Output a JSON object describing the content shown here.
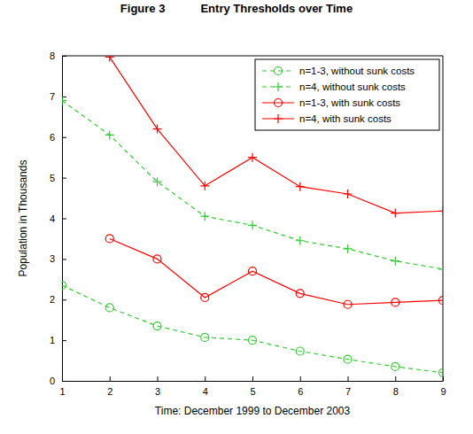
{
  "chart_data": {
    "type": "line",
    "title": "Figure 3",
    "subtitle": "Entry Thresholds over Time",
    "x_label": "Time: December 1999 to December 2003",
    "y_label": "Population in Thousands",
    "x": [
      1,
      2,
      3,
      4,
      5,
      6,
      7,
      8,
      9
    ],
    "xlim": [
      1,
      9
    ],
    "xticks": [
      1,
      2,
      3,
      4,
      5,
      6,
      7,
      8,
      9
    ],
    "ylim": [
      0,
      8
    ],
    "yticks": [
      0,
      1,
      2,
      3,
      4,
      5,
      6,
      7,
      8
    ],
    "grid": false,
    "legend": "upper right",
    "series": [
      {
        "name": "n=1-3, without sunk costs",
        "color": "#33cc33",
        "marker": "circle",
        "line_style": "dashed",
        "values": [
          2.35,
          1.8,
          1.35,
          1.07,
          1.0,
          0.73,
          0.53,
          0.35,
          0.2
        ]
      },
      {
        "name": "n=4, without sunk costs",
        "color": "#33cc33",
        "marker": "plus",
        "line_style": "dashed",
        "values": [
          6.9,
          6.05,
          4.9,
          4.05,
          3.83,
          3.45,
          3.25,
          2.95,
          2.75
        ]
      },
      {
        "name": "n=1-3, with sunk costs",
        "color": "#ff0000",
        "marker": "circle",
        "line_style": "solid",
        "values": [
          null,
          3.5,
          3.0,
          2.05,
          2.7,
          2.15,
          1.88,
          1.93,
          1.98
        ]
      },
      {
        "name": "n=4, with sunk costs",
        "color": "#ff0000",
        "marker": "plus",
        "line_style": "solid",
        "values": [
          null,
          7.97,
          6.2,
          4.8,
          5.5,
          4.78,
          4.6,
          4.13,
          4.18
        ]
      }
    ]
  }
}
